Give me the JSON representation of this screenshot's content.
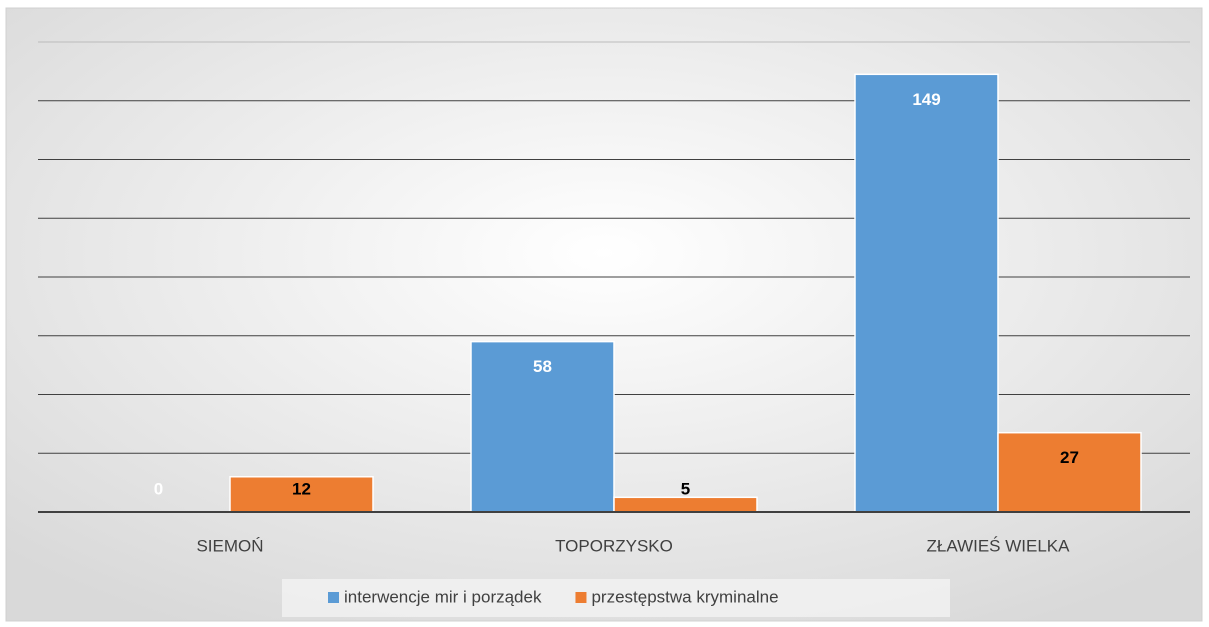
{
  "chart_data": {
    "type": "bar",
    "categories": [
      "SIEMOŃ",
      "TOPORZYSKO",
      "ZŁAWIEŚ WIELKA"
    ],
    "series": [
      {
        "name": "interwencje mir i porządek",
        "color": "#5b9bd5",
        "values": [
          0,
          58,
          149
        ]
      },
      {
        "name": "przestępstwa kryminalne",
        "color": "#ed7d31",
        "values": [
          12,
          5,
          27
        ]
      }
    ],
    "ylim": [
      0,
      160
    ],
    "yticks": [
      0,
      20,
      40,
      60,
      80,
      100,
      120,
      140,
      160
    ],
    "grid": true,
    "legend": "bottom"
  }
}
